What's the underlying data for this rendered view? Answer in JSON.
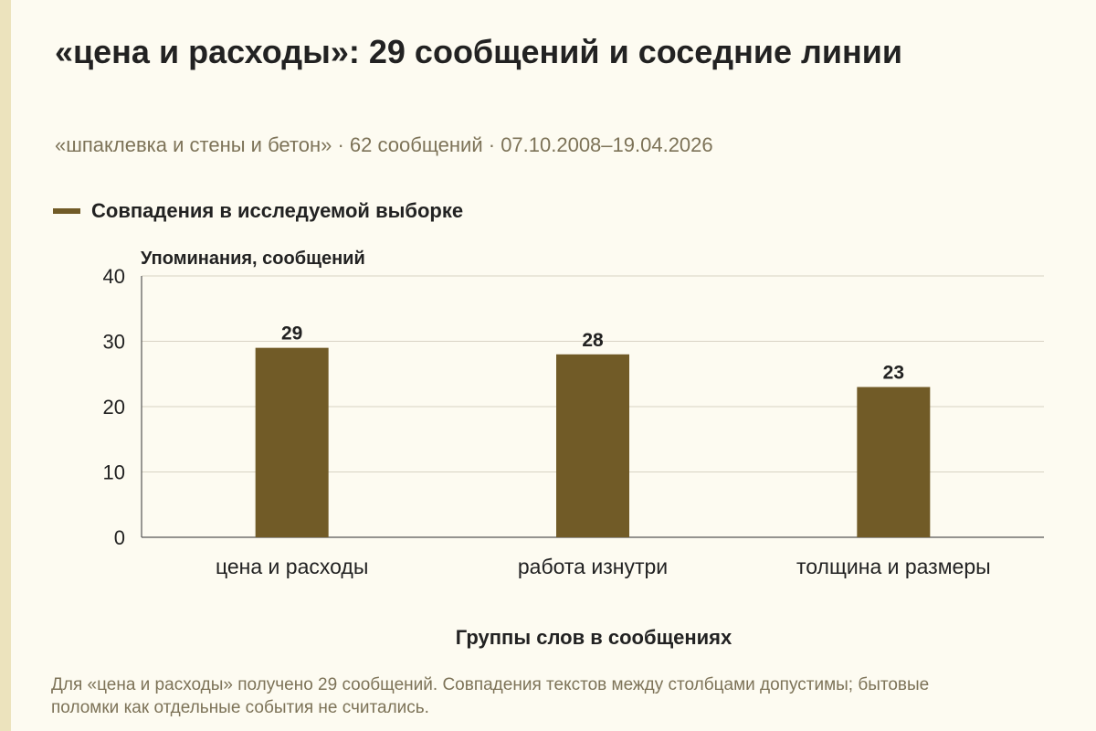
{
  "title": "«цена и расходы»: 29 сообщений и соседние линии",
  "subtitle": "«шпаклевка и стены и бетон» · 62 сообщений · 07.10.2008–19.04.2026",
  "note": "Для «цена и расходы» получено 29 сообщений. Совпадения текстов между столбцами допустимы; бытовые поломки как отдельные события не считались.",
  "colors": {
    "bar": "#715b27",
    "grid": "#d8d3c4",
    "axis": "#555555",
    "background": "#fdfbf1"
  },
  "chart_data": {
    "type": "bar",
    "title": "«цена и расходы»: 29 сообщений и соседние линии",
    "subtitle": "«шпаклевка и стены и бетон» · 62 сообщений · 07.10.2008–19.04.2026",
    "xlabel": "Группы слов в сообщениях",
    "ylabel": "Упоминания, сообщений",
    "categories": [
      "цена и расходы",
      "работа изнутри",
      "толщина и размеры"
    ],
    "series": [
      {
        "name": "Совпадения в исследуемой выборке",
        "values": [
          29,
          28,
          23
        ]
      }
    ],
    "ylim": [
      0,
      40
    ],
    "yticks": [
      0,
      10,
      20,
      30,
      40
    ],
    "grid": true,
    "legend": "top-left",
    "data_labels": true
  }
}
